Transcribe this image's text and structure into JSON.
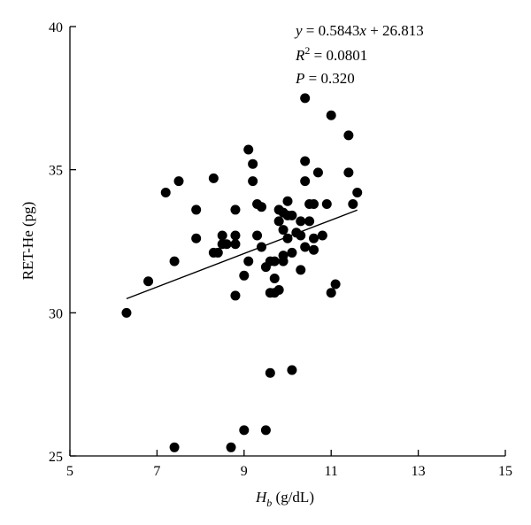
{
  "chart_data": {
    "type": "scatter",
    "xlabel_main": "H",
    "xlabel_sub": "b",
    "xlabel_unit": " (g/dL)",
    "ylabel": "RET-He (pg)",
    "xlim": [
      5,
      15
    ],
    "ylim": [
      25,
      40
    ],
    "xticks": [
      "5",
      "7",
      "9",
      "11",
      "13",
      "15"
    ],
    "yticks": [
      "25",
      "30",
      "35",
      "40"
    ],
    "annotations": {
      "equation": "y = 0.5843x + 26.813",
      "r2": "R2 = 0.0801",
      "p": "P = 0.320"
    },
    "regression": {
      "slope": 0.5843,
      "intercept": 26.813,
      "x_range": [
        6.3,
        11.6
      ]
    },
    "points": [
      [
        6.3,
        30.0
      ],
      [
        6.8,
        31.1
      ],
      [
        7.2,
        34.2
      ],
      [
        7.4,
        31.8
      ],
      [
        7.5,
        34.6
      ],
      [
        7.4,
        25.3
      ],
      [
        7.9,
        33.6
      ],
      [
        7.9,
        32.6
      ],
      [
        8.3,
        34.7
      ],
      [
        8.3,
        32.1
      ],
      [
        8.4,
        32.1
      ],
      [
        8.5,
        32.7
      ],
      [
        8.5,
        32.4
      ],
      [
        8.6,
        32.4
      ],
      [
        8.7,
        25.3
      ],
      [
        8.8,
        33.6
      ],
      [
        8.8,
        32.7
      ],
      [
        8.8,
        32.4
      ],
      [
        8.8,
        30.6
      ],
      [
        9.0,
        31.3
      ],
      [
        9.1,
        31.8
      ],
      [
        9.1,
        35.7
      ],
      [
        9.2,
        35.2
      ],
      [
        9.2,
        34.6
      ],
      [
        9.3,
        33.8
      ],
      [
        9.3,
        32.7
      ],
      [
        9.4,
        33.7
      ],
      [
        9.4,
        32.3
      ],
      [
        9.5,
        31.6
      ],
      [
        9.6,
        31.8
      ],
      [
        9.6,
        30.7
      ],
      [
        9.7,
        31.8
      ],
      [
        9.7,
        31.2
      ],
      [
        9.7,
        30.7
      ],
      [
        9.8,
        33.6
      ],
      [
        9.8,
        33.2
      ],
      [
        9.8,
        30.8
      ],
      [
        9.9,
        33.5
      ],
      [
        9.9,
        32.9
      ],
      [
        9.9,
        32.0
      ],
      [
        9.9,
        31.8
      ],
      [
        10.0,
        33.9
      ],
      [
        10.0,
        33.4
      ],
      [
        10.0,
        32.6
      ],
      [
        10.1,
        33.4
      ],
      [
        10.1,
        32.1
      ],
      [
        10.2,
        32.8
      ],
      [
        10.3,
        33.2
      ],
      [
        10.3,
        32.7
      ],
      [
        10.3,
        31.5
      ],
      [
        10.4,
        37.5
      ],
      [
        10.4,
        35.3
      ],
      [
        10.4,
        34.6
      ],
      [
        10.4,
        32.3
      ],
      [
        10.5,
        33.8
      ],
      [
        10.5,
        33.2
      ],
      [
        10.6,
        33.8
      ],
      [
        10.6,
        32.6
      ],
      [
        10.6,
        32.2
      ],
      [
        10.7,
        34.9
      ],
      [
        10.8,
        32.7
      ],
      [
        10.9,
        33.8
      ],
      [
        11.0,
        36.9
      ],
      [
        11.0,
        30.7
      ],
      [
        11.1,
        31.0
      ],
      [
        11.4,
        36.2
      ],
      [
        11.4,
        34.9
      ],
      [
        11.5,
        33.8
      ],
      [
        11.6,
        34.2
      ],
      [
        9.0,
        25.9
      ],
      [
        9.5,
        25.9
      ],
      [
        9.6,
        27.9
      ],
      [
        10.1,
        28.0
      ]
    ]
  }
}
